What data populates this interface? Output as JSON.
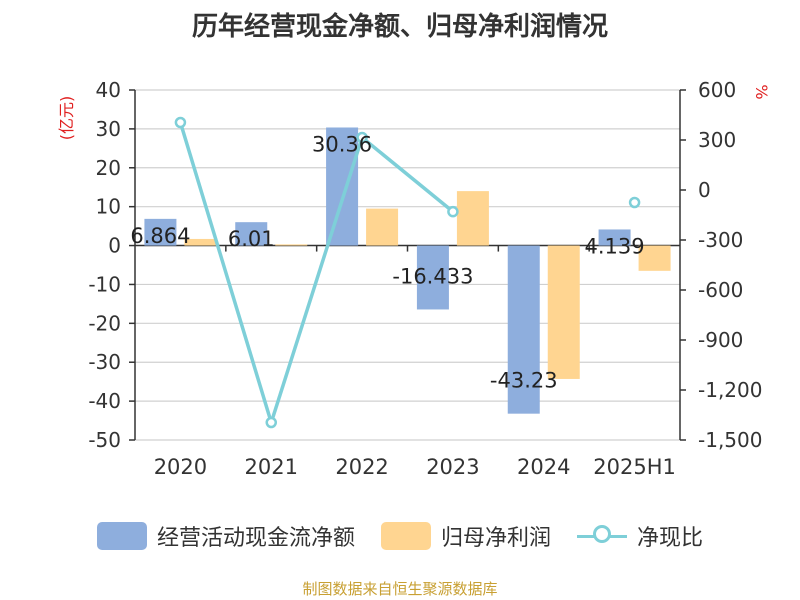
{
  "title": "历年经营现金净额、归母净利润情况",
  "source": "制图数据来自恒生聚源数据库",
  "colors": {
    "operating_cash": "#8eaedd",
    "net_profit": "#ffd591",
    "ratio": "#7ecfd8",
    "axis_unit": "#e02020"
  },
  "chart_data": {
    "type": "bar",
    "categories": [
      "2020",
      "2021",
      "2022",
      "2023",
      "2024",
      "2025H1"
    ],
    "y_left": {
      "unit": "(亿元)",
      "ylim": [
        -50,
        40
      ],
      "ticks": [
        40,
        30,
        20,
        10,
        0,
        -10,
        -20,
        -30,
        -40,
        -50
      ]
    },
    "y_right": {
      "unit": "%",
      "ylim": [
        -1500,
        600
      ],
      "ticks": [
        600,
        300,
        0,
        -300,
        -600,
        -900,
        -1200,
        -1500
      ],
      "tick_labels": [
        "600",
        "300",
        "0",
        "-300",
        "-600",
        "-900",
        "-1,200",
        "-1,500"
      ]
    },
    "grid": true,
    "legend_position": "bottom",
    "series": [
      {
        "name": "经营活动现金流净额",
        "type": "bar",
        "axis": "left",
        "values": [
          6.864,
          6.01,
          30.36,
          -16.433,
          -43.23,
          4.139
        ],
        "labels": [
          "6.864",
          "6.01",
          "30.36",
          "-16.433",
          "-43.23",
          "4.139"
        ]
      },
      {
        "name": "归母净利润",
        "type": "bar",
        "axis": "left",
        "values": [
          1.7,
          0.3,
          9.5,
          14.0,
          -34.3,
          -6.5
        ]
      },
      {
        "name": "净现比",
        "type": "line",
        "axis": "right",
        "values": [
          405,
          -1395,
          315,
          -130,
          null,
          -75
        ]
      }
    ]
  },
  "legend": [
    {
      "label": "经营活动现金流净额"
    },
    {
      "label": "归母净利润"
    },
    {
      "label": "净现比"
    }
  ]
}
